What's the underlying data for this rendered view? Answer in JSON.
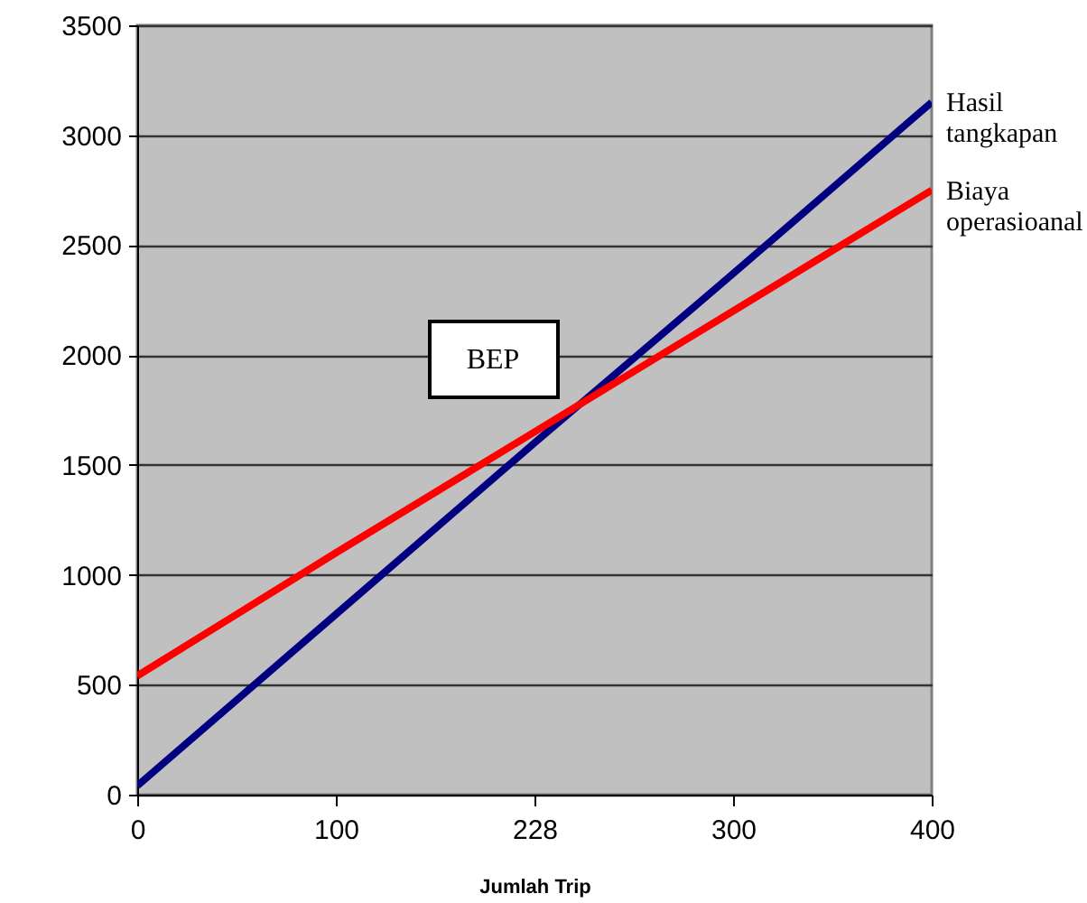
{
  "chart_data": {
    "type": "line",
    "xlabel": "Jumlah Trip",
    "categories": [
      "0",
      "100",
      "228",
      "300",
      "400"
    ],
    "series": [
      {
        "name": "Hasil tangkapan",
        "color": "#000080",
        "values": [
          40,
          820,
          1600,
          2370,
          3150
        ]
      },
      {
        "name": "Biaya operasioanal",
        "color": "#ff0000",
        "values": [
          540,
          1100,
          1650,
          2200,
          2750
        ]
      }
    ],
    "ylim": [
      0,
      3500
    ],
    "yticks": [
      0,
      500,
      1000,
      1500,
      2000,
      2500,
      3000,
      3500
    ],
    "grid": "y",
    "marker": "none",
    "line_style": "solid",
    "annotations": [
      "BEP"
    ]
  }
}
